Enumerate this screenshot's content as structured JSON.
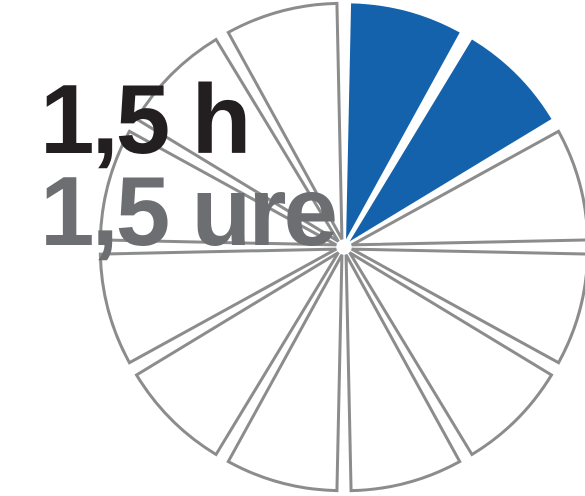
{
  "labels": {
    "primary": "1,5 h",
    "secondary": "1,5 ure"
  },
  "diagram": {
    "segments_total": 12,
    "filled_segments": [
      0,
      1
    ],
    "colors": {
      "filled": "#1462ab",
      "empty": "#ffffff",
      "outline": "#8c8c8c",
      "primary_text": "#231f20",
      "secondary_text": "#6d6e71"
    }
  }
}
